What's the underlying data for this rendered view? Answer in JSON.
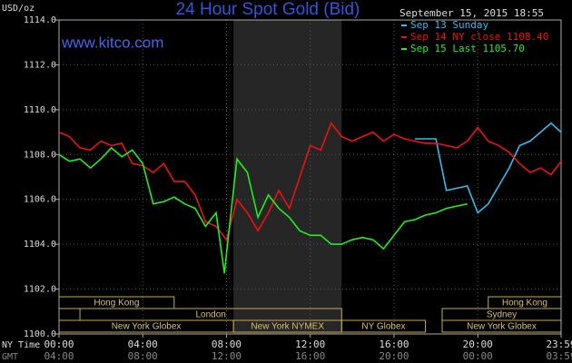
{
  "chart_data": {
    "type": "line",
    "title": "24 Hour Spot Gold (Bid)",
    "source": "www.kitco.com",
    "y_label": "USD/oz",
    "timestamp": "September 15, 2015 18:55",
    "x_row_labels": [
      "NY Time",
      "GMT"
    ],
    "ylim": [
      1100,
      1114
    ],
    "yticks": [
      {
        "value": 1100,
        "label": "1100.0"
      },
      {
        "value": 1102,
        "label": "1102.0"
      },
      {
        "value": 1104,
        "label": "1104.0"
      },
      {
        "value": 1106,
        "label": "1106.0"
      },
      {
        "value": 1108,
        "label": "1108.0"
      },
      {
        "value": 1110,
        "label": "1110.0"
      },
      {
        "value": 1112,
        "label": "1112.0"
      },
      {
        "value": 1114,
        "label": "1114.0"
      }
    ],
    "xlim": [
      0,
      23.98
    ],
    "xticks": [
      {
        "value": 0,
        "label": "00:00"
      },
      {
        "value": 4,
        "label": "04:00"
      },
      {
        "value": 8,
        "label": "08:00"
      },
      {
        "value": 12,
        "label": "12:00"
      },
      {
        "value": 16,
        "label": "16:00"
      },
      {
        "value": 20,
        "label": "20:00"
      },
      {
        "value": 23.98,
        "label": "23:59"
      }
    ],
    "gmt_labels": [
      "04:00",
      "08:00",
      "12:00",
      "16:00",
      "20:00",
      "00:00",
      "03:59"
    ],
    "shade": [
      8.33,
      13.5
    ],
    "grid": true,
    "sessions": [
      {
        "name": "Hong Kong",
        "row": 0,
        "start": 0,
        "end": 5.5
      },
      {
        "name": "Hong Kong",
        "row": 0,
        "start": 20.5,
        "end": 23.98
      },
      {
        "name": "London",
        "row": 1,
        "start": 1,
        "end": 13.5
      },
      {
        "name": "Sydney",
        "row": 1,
        "start": 18.3,
        "end": 23.98
      },
      {
        "name": "New York Globex",
        "row": 2,
        "start": 0,
        "end": 8.33
      },
      {
        "name": "New York NYMEX",
        "row": 2,
        "start": 8.33,
        "end": 13.5
      },
      {
        "name": "NY Globex",
        "row": 2,
        "start": 13.5,
        "end": 17.5
      },
      {
        "name": "New York Globex",
        "row": 2,
        "start": 18.3,
        "end": 23.98
      }
    ],
    "series": [
      {
        "name": "Sep 13 Sunday",
        "color": "#33bbee",
        "x": [
          17,
          18,
          18.5,
          19,
          19.5,
          20,
          20.5,
          21,
          21.5,
          22,
          22.5,
          23,
          23.5,
          23.98
        ],
        "values": [
          1108.7,
          1108.7,
          1106.4,
          1106.5,
          1106.6,
          1105.4,
          1105.8,
          1106.6,
          1107.4,
          1108.4,
          1108.6,
          1109.0,
          1109.4,
          1109.0
        ]
      },
      {
        "name": "Sep 14 NY close 1108.40",
        "color": "#ee1111",
        "x": [
          0,
          0.5,
          1,
          1.5,
          2,
          2.5,
          3,
          3.5,
          4,
          4.5,
          5,
          5.5,
          6,
          6.5,
          7,
          7.5,
          8,
          8.5,
          9,
          9.5,
          10,
          10.5,
          11,
          11.5,
          12,
          12.5,
          13,
          13.5,
          14,
          14.5,
          15,
          15.5,
          16,
          16.5,
          17,
          17.5,
          18,
          18.5,
          19,
          19.5,
          20,
          20.5,
          21,
          21.5,
          22,
          22.5,
          23,
          23.5,
          23.98
        ],
        "values": [
          1109.0,
          1108.8,
          1108.3,
          1108.2,
          1108.6,
          1108.4,
          1108.5,
          1107.6,
          1107.5,
          1107.2,
          1107.6,
          1106.8,
          1106.8,
          1106.2,
          1105.0,
          1104.8,
          1104.2,
          1106.0,
          1105.4,
          1104.6,
          1105.4,
          1106.4,
          1105.6,
          1107.0,
          1108.4,
          1108.2,
          1109.4,
          1108.8,
          1108.6,
          1108.8,
          1109.0,
          1108.6,
          1108.9,
          1108.7,
          1108.6,
          1108.5,
          1108.5,
          1108.4,
          1108.3,
          1108.6,
          1109.2,
          1108.6,
          1108.4,
          1108.1,
          1107.6,
          1107.2,
          1107.4,
          1107.1,
          1107.7
        ]
      },
      {
        "name": "Sep 15 Last 1105.70",
        "color": "#22ee22",
        "x": [
          0,
          0.5,
          1,
          1.5,
          2,
          2.5,
          3,
          3.5,
          4,
          4.5,
          5,
          5.5,
          6,
          6.5,
          7,
          7.5,
          7.9,
          8,
          8.5,
          9,
          9.5,
          10,
          10.5,
          11,
          11.5,
          12,
          12.5,
          13,
          13.5,
          14,
          14.5,
          15,
          15.5,
          16,
          16.5,
          17,
          17.5,
          18,
          18.5,
          19,
          19.5
        ],
        "values": [
          1108.0,
          1107.7,
          1107.8,
          1107.4,
          1107.8,
          1108.3,
          1107.9,
          1108.2,
          1107.6,
          1105.8,
          1105.9,
          1106.1,
          1105.8,
          1105.6,
          1104.8,
          1105.4,
          1102.7,
          1103.6,
          1107.8,
          1107.2,
          1105.2,
          1106.2,
          1105.6,
          1105.2,
          1104.6,
          1104.4,
          1104.4,
          1104.0,
          1104.0,
          1104.2,
          1104.3,
          1104.2,
          1103.8,
          1104.4,
          1105.0,
          1105.1,
          1105.3,
          1105.4,
          1105.6,
          1105.7,
          1105.8
        ]
      }
    ]
  }
}
